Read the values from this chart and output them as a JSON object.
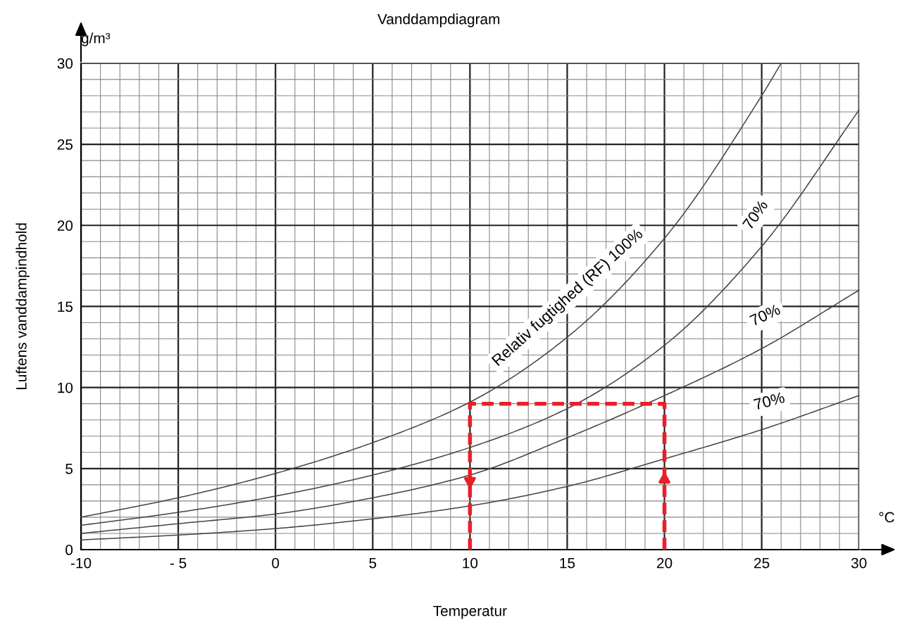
{
  "chart_data": {
    "type": "line",
    "title": "Vanddampdiagram",
    "xlabel": "Temperatur",
    "ylabel": "Luftens vanddampindhold",
    "x": [
      -10,
      -5,
      0,
      5,
      10,
      15,
      20,
      25,
      30
    ],
    "series": [
      {
        "color": "#444444",
        "x": [
          -10,
          -5,
          0,
          5,
          10,
          15,
          20,
          25,
          26
        ],
        "values": [
          2.0,
          3.2,
          4.7,
          6.6,
          9.1,
          13.1,
          19.2,
          28.0,
          30.0
        ]
      },
      {
        "color": "#444444",
        "values": [
          1.5,
          2.3,
          3.3,
          4.6,
          6.3,
          8.7,
          12.6,
          18.7,
          27.1
        ]
      },
      {
        "color": "#444444",
        "values": [
          1.0,
          1.6,
          2.2,
          3.2,
          4.6,
          6.9,
          9.5,
          12.4,
          16.0
        ]
      },
      {
        "color": "#444444",
        "values": [
          0.6,
          0.9,
          1.3,
          1.9,
          2.7,
          3.9,
          5.6,
          7.4,
          9.5
        ]
      },
      {
        "color": "#e8202a",
        "x": [
          20,
          20,
          10,
          10
        ],
        "values": [
          0,
          9,
          9,
          0
        ],
        "line_style": "dashed"
      }
    ],
    "xlim": [
      -10,
      30
    ],
    "ylim": [
      0,
      30
    ],
    "xticks": [
      -10,
      {
        "value": -5,
        "label": "- 5"
      },
      0,
      5,
      10,
      15,
      20,
      25,
      30
    ],
    "yticks": [
      0,
      5,
      10,
      15,
      20,
      25,
      30
    ],
    "grid": true,
    "legend": false,
    "marker": "none",
    "annotations": [
      "Relativ fugtighed (RF) 100%",
      "70%",
      "70%",
      "70%",
      "g/m³",
      "°C"
    ]
  }
}
